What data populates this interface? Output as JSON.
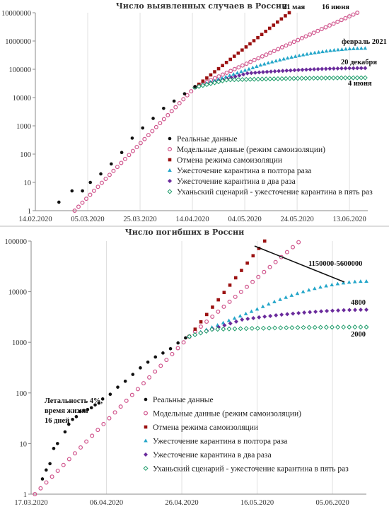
{
  "chart_data": [
    {
      "type": "scatter",
      "title": "Число выявленных случаев в России",
      "x_ticks": [
        "14.02.2020",
        "05.03.2020",
        "25.03.2020",
        "14.04.2020",
        "04.05.2020",
        "24.05.2020",
        "13.06.2020"
      ],
      "x_range": [
        "2020-02-14",
        "2020-06-20"
      ],
      "y_scale": "log",
      "y_ticks": [
        "1",
        "10",
        "100",
        "1000",
        "10000",
        "100000",
        "1000000",
        "10000000"
      ],
      "y_range": [
        1,
        10000000
      ],
      "grid": "vertical",
      "legend_position": "bottom-right",
      "annotations": [
        {
          "text": "21 мая",
          "series": "Отмена режима самоизоляции"
        },
        {
          "text": "16 июня",
          "series": "Модельные данные (режим самоизоляции)"
        },
        {
          "text": "февраль 2021",
          "series": "Ужесточение карантина в полтора раза"
        },
        {
          "text": "20 декабря",
          "series": "Ужесточение карантина в два раза"
        },
        {
          "text": "4 июня",
          "series": "Уханьский сценарий - ужесточение карантина в пять раз"
        }
      ],
      "series": [
        {
          "name": "Реальные данные",
          "marker": "dot",
          "color": "#111111",
          "points": [
            [
              "2020-02-23",
              2
            ],
            [
              "2020-02-28",
              5
            ],
            [
              "2020-03-03",
              5
            ],
            [
              "2020-03-06",
              10
            ],
            [
              "2020-03-10",
              20
            ],
            [
              "2020-03-14",
              45
            ],
            [
              "2020-03-18",
              114
            ],
            [
              "2020-03-22",
              367
            ],
            [
              "2020-03-26",
              840
            ],
            [
              "2020-03-30",
              1836
            ],
            [
              "2020-04-03",
              4149
            ],
            [
              "2020-04-07",
              7497
            ],
            [
              "2020-04-11",
              13584
            ],
            [
              "2020-04-15",
              24490
            ]
          ]
        },
        {
          "name": "Модельные данные (режим самоизоляции)",
          "marker": "ring",
          "color": "#d0548c",
          "start": [
            "2020-02-29",
            1
          ],
          "pivot": [
            "2020-04-15",
            23000
          ],
          "end": [
            "2020-06-16",
            10000000
          ]
        },
        {
          "name": "Отмена режима самоизоляции",
          "marker": "square",
          "color": "#9b1111",
          "start": [
            "2020-04-15",
            23000
          ],
          "end": [
            "2020-05-21",
            10000000
          ]
        },
        {
          "name": "Ужесточение карантина в полтора раза",
          "marker": "triangle",
          "color": "#24a6c9",
          "start": [
            "2020-04-15",
            23000
          ],
          "mid": [
            "2020-05-10",
            140000
          ],
          "end": [
            "2020-06-19",
            550000
          ]
        },
        {
          "name": "Ужесточение карантина в два раза",
          "marker": "diamond",
          "color": "#6a2b9c",
          "start": [
            "2020-04-15",
            23000
          ],
          "mid": [
            "2020-05-05",
            72000
          ],
          "end": [
            "2020-06-19",
            110000
          ]
        },
        {
          "name": "Уханьский сценарий - ужесточение карантина в пять раз",
          "marker": "diamond-open",
          "color": "#1e9c6a",
          "start": [
            "2020-04-15",
            23000
          ],
          "mid": [
            "2020-04-27",
            42000
          ],
          "end": [
            "2020-06-19",
            50000
          ]
        }
      ]
    },
    {
      "type": "scatter",
      "title": "Число погибших в России",
      "x_ticks": [
        "17.03.2020",
        "06.04.2020",
        "26.04.2020",
        "16.05.2020",
        "05.06.2020"
      ],
      "x_range": [
        "2020-03-17",
        "2020-06-14"
      ],
      "y_scale": "log",
      "y_ticks": [
        "1",
        "10",
        "100",
        "1000",
        "10000",
        "100000"
      ],
      "y_range": [
        1,
        100000
      ],
      "grid": "vertical",
      "legend_position": "bottom-center",
      "side_note": [
        "Летальность 4%,",
        "время жизни",
        "16 дней"
      ],
      "annotations": [
        {
          "text": "1150000-5600000",
          "series": "Отмена режима самоизоляции"
        },
        {
          "text": "4800",
          "series": "Ужесточение карантина в два раза"
        },
        {
          "text": "2000",
          "series": "Уханьский сценарий - ужесточение карантина в пять раз"
        }
      ],
      "series": [
        {
          "name": "Реальные данные",
          "marker": "dot",
          "color": "#111111",
          "points": [
            [
              "2020-03-20",
              2
            ],
            [
              "2020-03-21",
              3
            ],
            [
              "2020-03-22",
              4
            ],
            [
              "2020-03-23",
              8
            ],
            [
              "2020-03-24",
              10
            ],
            [
              "2020-03-26",
              17
            ],
            [
              "2020-03-27",
              24
            ],
            [
              "2020-03-28",
              30
            ],
            [
              "2020-03-29",
              34
            ],
            [
              "2020-03-30",
              43
            ],
            [
              "2020-03-31",
              45
            ],
            [
              "2020-04-01",
              47
            ],
            [
              "2020-04-02",
              51
            ],
            [
              "2020-04-03",
              58
            ],
            [
              "2020-04-04",
              63
            ],
            [
              "2020-04-05",
              76
            ],
            [
              "2020-04-07",
              94
            ],
            [
              "2020-04-09",
              130
            ],
            [
              "2020-04-11",
              170
            ],
            [
              "2020-04-13",
              232
            ],
            [
              "2020-04-15",
              313
            ],
            [
              "2020-04-17",
              405
            ],
            [
              "2020-04-19",
              513
            ],
            [
              "2020-04-21",
              615
            ],
            [
              "2020-04-23",
              747
            ],
            [
              "2020-04-25",
              972
            ],
            [
              "2020-04-27",
              1222
            ]
          ]
        },
        {
          "name": "Модельные данные (режим самоизоляции)",
          "marker": "ring",
          "color": "#d0548c",
          "start": [
            "2020-03-18",
            1
          ],
          "pivot": [
            "2020-04-28",
            1300
          ],
          "end": [
            "2020-05-27",
            95000
          ]
        },
        {
          "name": "Отмена режима самоизоляции",
          "marker": "square",
          "color": "#9b1111",
          "start": [
            "2020-04-28",
            1300
          ],
          "end": [
            "2020-05-18",
            100000
          ]
        },
        {
          "name": "Ужесточение карантина в полтора раза",
          "marker": "triangle",
          "color": "#24a6c9",
          "start": [
            "2020-04-28",
            1300
          ],
          "mid": [
            "2020-05-16",
            4500
          ],
          "end": [
            "2020-06-14",
            16000
          ]
        },
        {
          "name": "Ужесточение карантина в два раза",
          "marker": "diamond",
          "color": "#6a2b9c",
          "start": [
            "2020-04-28",
            1300
          ],
          "mid": [
            "2020-05-12",
            2800
          ],
          "end": [
            "2020-06-14",
            4400
          ]
        },
        {
          "name": "Уханьский сценарий - ужесточение карантина в пять раз",
          "marker": "diamond-open",
          "color": "#1e9c6a",
          "start": [
            "2020-04-28",
            1300
          ],
          "mid": [
            "2020-05-04",
            1800
          ],
          "end": [
            "2020-06-14",
            2000
          ]
        }
      ]
    }
  ]
}
